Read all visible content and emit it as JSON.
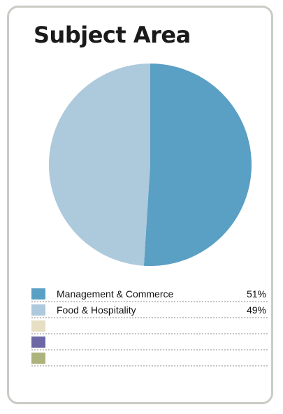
{
  "chart_data": {
    "type": "pie",
    "title": "Subject Area",
    "slices": [
      {
        "label": "Management & Commerce",
        "value": 51,
        "display": "51%",
        "color": "#5a9fc4"
      },
      {
        "label": "Food & Hospitality",
        "value": 49,
        "display": "49%",
        "color": "#adc9dc"
      },
      {
        "label": "",
        "value": 0,
        "display": "",
        "color": "#e6dfc3"
      },
      {
        "label": "",
        "value": 0,
        "display": "",
        "color": "#6e67a6"
      },
      {
        "label": "",
        "value": 0,
        "display": "",
        "color": "#adb37c"
      }
    ]
  }
}
